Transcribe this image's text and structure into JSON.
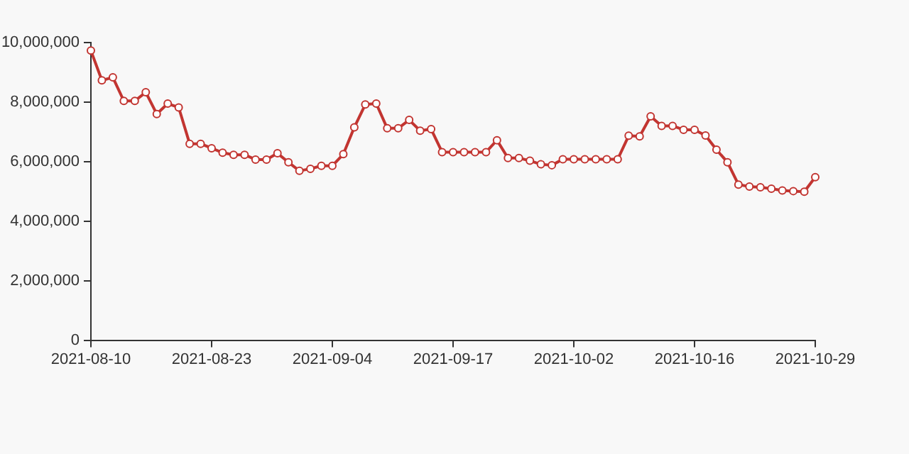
{
  "chart_data": {
    "type": "line",
    "categories": [
      "2021-08-10",
      null,
      null,
      null,
      null,
      null,
      null,
      null,
      null,
      null,
      null,
      "2021-08-23",
      null,
      null,
      null,
      null,
      null,
      null,
      null,
      null,
      null,
      null,
      "2021-09-04",
      null,
      null,
      null,
      null,
      null,
      null,
      null,
      null,
      null,
      null,
      "2021-09-17",
      null,
      null,
      null,
      null,
      null,
      null,
      null,
      null,
      null,
      null,
      "2021-10-02",
      null,
      null,
      null,
      null,
      null,
      null,
      null,
      null,
      null,
      null,
      "2021-10-16",
      null,
      null,
      null,
      null,
      null,
      null,
      null,
      null,
      null,
      null,
      "2021-10-29"
    ],
    "series": [
      {
        "color": "#c23531",
        "values": [
          9730000,
          8730000,
          8830000,
          8040000,
          8040000,
          8330000,
          7600000,
          7950000,
          7820000,
          6600000,
          6600000,
          6450000,
          6300000,
          6230000,
          6230000,
          6070000,
          6070000,
          6280000,
          5980000,
          5690000,
          5760000,
          5860000,
          5860000,
          6250000,
          7150000,
          7920000,
          7950000,
          7120000,
          7120000,
          7400000,
          7040000,
          7090000,
          6320000,
          6320000,
          6320000,
          6320000,
          6320000,
          6720000,
          6120000,
          6120000,
          6030000,
          5910000,
          5880000,
          6080000,
          6080000,
          6080000,
          6080000,
          6080000,
          6080000,
          6870000,
          6850000,
          7520000,
          7200000,
          7200000,
          7070000,
          7070000,
          6880000,
          6400000,
          5980000,
          5230000,
          5160000,
          5140000,
          5090000,
          5030000,
          5010000,
          4990000,
          5480000
        ]
      }
    ],
    "ylim": [
      0,
      10000000
    ],
    "yticks": [
      0,
      {
        "value": 2000000,
        "label": "2,000,000"
      },
      {
        "value": 4000000,
        "label": "4,000,000"
      },
      {
        "value": 6000000,
        "label": "6,000,000"
      },
      {
        "value": 8000000,
        "label": "8,000,000"
      },
      {
        "value": 10000000,
        "label": "10,000,000"
      }
    ],
    "grid": false,
    "legend": false,
    "marker": "circle",
    "line_style": "solid"
  }
}
